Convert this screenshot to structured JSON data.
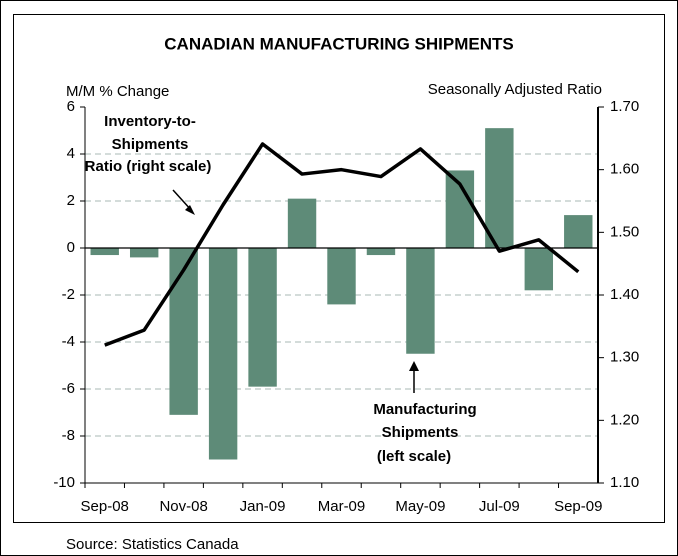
{
  "chart_data": {
    "type": "bar_line",
    "title": "CANADIAN MANUFACTURING SHIPMENTS",
    "y_axis_label": "M/M % Change",
    "y2_axis_label": "Seasonally Adjusted Ratio",
    "source": "Source: Statistics Canada",
    "categories": [
      "Sep-08",
      null,
      "Nov-08",
      null,
      "Jan-09",
      null,
      "Mar-09",
      null,
      "May-09",
      null,
      "Jul-09",
      null,
      "Sep-09"
    ],
    "series": [
      {
        "name": "Manufacturing Shipments",
        "type": "bar",
        "color": "#5e8b78",
        "values": [
          -0.3,
          -0.4,
          -7.1,
          -9.0,
          -5.9,
          2.1,
          -2.4,
          -0.3,
          -4.5,
          3.3,
          5.1,
          -1.8,
          1.4
        ]
      },
      {
        "name": "Inventory-to-Shipments Ratio",
        "type": "line",
        "axis": "y2",
        "color": "#000000",
        "values": [
          1.32,
          1.344,
          1.44,
          1.544,
          1.641,
          1.593,
          1.6,
          1.589,
          1.633,
          1.577,
          1.47,
          1.488,
          1.437
        ]
      }
    ],
    "annotations": [
      {
        "lines": [
          "Inventory-to-",
          "Shipments",
          "Ratio (right scale)"
        ]
      },
      {
        "lines": [
          "Manufacturing",
          "Shipments",
          "(left scale)"
        ]
      }
    ],
    "ylim": [
      -10,
      6
    ],
    "yticks": [
      -10,
      -8,
      -6,
      -4,
      -2,
      0,
      2,
      4,
      6
    ],
    "y2lim": [
      1.1,
      1.7
    ],
    "y2ticks": [
      {
        "value": 1.1,
        "label": "1.10"
      },
      {
        "value": 1.2,
        "label": "1.20"
      },
      {
        "value": 1.3,
        "label": "1.30"
      },
      {
        "value": 1.4,
        "label": "1.40"
      },
      {
        "value": 1.5,
        "label": "1.50"
      },
      {
        "value": 1.6,
        "label": "1.60"
      },
      {
        "value": 1.7,
        "label": "1.70"
      }
    ],
    "grid": true
  }
}
